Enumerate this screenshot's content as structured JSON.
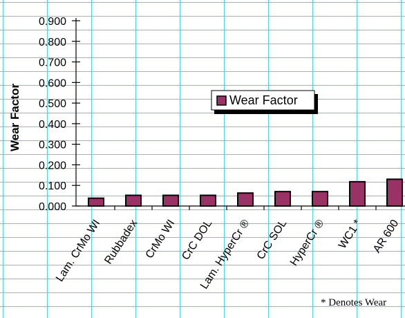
{
  "chart_data": {
    "type": "bar",
    "ylabel": "Wear Factor",
    "ylim": [
      0,
      0.9
    ],
    "yticks": [
      "0.000",
      "0.100",
      "0.200",
      "0.300",
      "0.400",
      "0.500",
      "0.600",
      "0.700",
      "0.800",
      "0.900"
    ],
    "categories": [
      "Lam. CrMo WI",
      "Rubbadex",
      "CrMo WI",
      "CrC DOL",
      "Lam. HyperCr ®",
      "CrC SOL",
      "HyperCr ®",
      "WC1 *",
      "AR 600"
    ],
    "series": [
      {
        "name": "Wear Factor",
        "values": [
          0.038,
          0.052,
          0.052,
          0.052,
          0.063,
          0.07,
          0.07,
          0.118,
          0.13
        ]
      }
    ],
    "legend_position": "center-right",
    "grid": true,
    "colors": {
      "bar": "#993366",
      "grid": "#49d6dc"
    }
  },
  "footnote": "* Denotes Wear"
}
